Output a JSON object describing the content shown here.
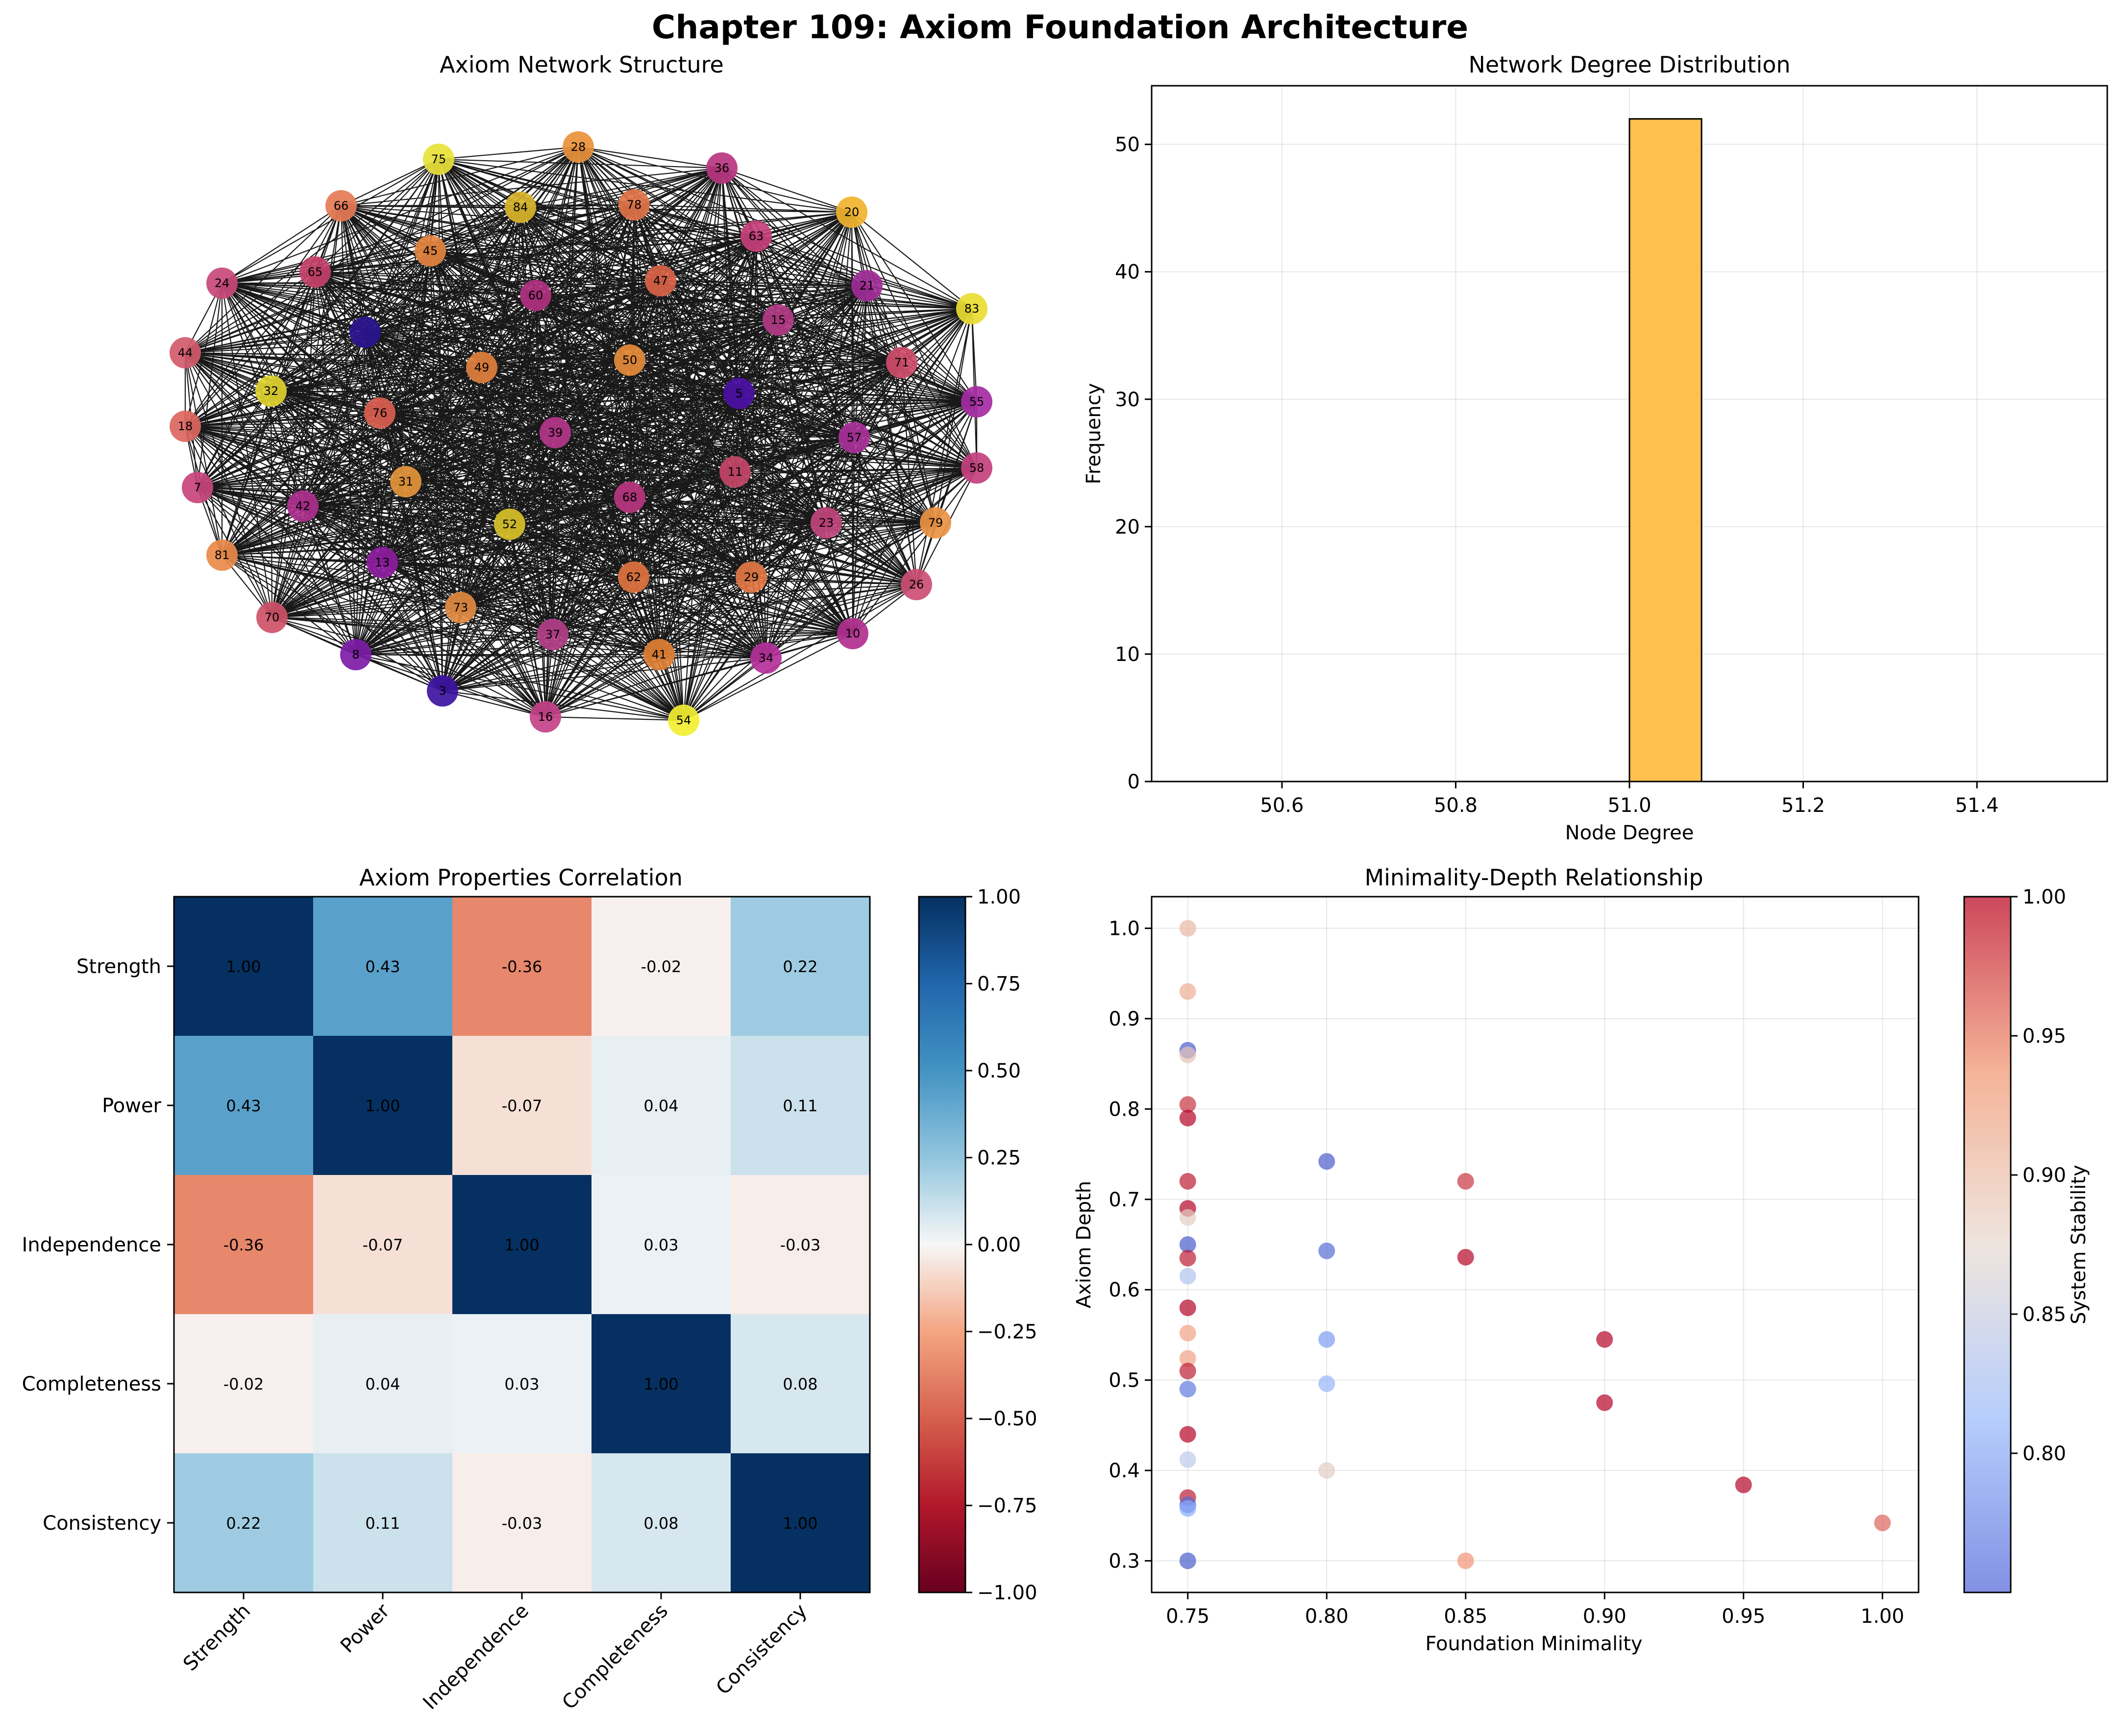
{
  "figure_title": "Chapter 109: Axiom Foundation Architecture",
  "chart_data": [
    {
      "type": "network",
      "title": "Axiom Network Structure",
      "node_count": 52,
      "complete_graph": true,
      "nodes": [
        {
          "label": "75",
          "color": "#e8e23a"
        },
        {
          "label": "28",
          "color": "#e8913a"
        },
        {
          "label": "36",
          "color": "#b9357f"
        },
        {
          "label": "20",
          "color": "#f0b32e"
        },
        {
          "label": "66",
          "color": "#e57a55"
        },
        {
          "label": "84",
          "color": "#d9b42a"
        },
        {
          "label": "78",
          "color": "#e07346"
        },
        {
          "label": "63",
          "color": "#c43f7a"
        },
        {
          "label": "45",
          "color": "#e3843f"
        },
        {
          "label": "24",
          "color": "#c8487a"
        },
        {
          "label": "65",
          "color": "#c4406a"
        },
        {
          "label": "60",
          "color": "#b03080"
        },
        {
          "label": "47",
          "color": "#d96247"
        },
        {
          "label": "21",
          "color": "#a02b97"
        },
        {
          "label": "83",
          "color": "#e9dc31"
        },
        {
          "label": "15",
          "color": "#b33a85"
        },
        {
          "label": "",
          "color": "#2a138f"
        },
        {
          "label": "44",
          "color": "#d15a6b"
        },
        {
          "label": "49",
          "color": "#e07f3c"
        },
        {
          "label": "50",
          "color": "#e58b38"
        },
        {
          "label": "71",
          "color": "#cf4c6a"
        },
        {
          "label": "32",
          "color": "#e0d22e"
        },
        {
          "label": "5",
          "color": "#4a0fa3"
        },
        {
          "label": "55",
          "color": "#a52ba2"
        },
        {
          "label": "18",
          "color": "#dd6660"
        },
        {
          "label": "76",
          "color": "#d95e50"
        },
        {
          "label": "39",
          "color": "#b3358a"
        },
        {
          "label": "57",
          "color": "#a83099"
        },
        {
          "label": "7",
          "color": "#c8447c"
        },
        {
          "label": "31",
          "color": "#e3953a"
        },
        {
          "label": "11",
          "color": "#c44466"
        },
        {
          "label": "58",
          "color": "#c4407f"
        },
        {
          "label": "42",
          "color": "#ad2f8e"
        },
        {
          "label": "68",
          "color": "#b9357f"
        },
        {
          "label": "52",
          "color": "#d8c129"
        },
        {
          "label": "23",
          "color": "#c0447c"
        },
        {
          "label": "79",
          "color": "#ea9244"
        },
        {
          "label": "81",
          "color": "#ea8a4a"
        },
        {
          "label": "13",
          "color": "#8d1c9f"
        },
        {
          "label": "62",
          "color": "#de723f"
        },
        {
          "label": "29",
          "color": "#e27744"
        },
        {
          "label": "26",
          "color": "#cc4f74"
        },
        {
          "label": "70",
          "color": "#cf5168"
        },
        {
          "label": "73",
          "color": "#e18a40"
        },
        {
          "label": "37",
          "color": "#b33e89"
        },
        {
          "label": "10",
          "color": "#b12f8e"
        },
        {
          "label": "8",
          "color": "#7c1ca6"
        },
        {
          "label": "41",
          "color": "#e07f34"
        },
        {
          "label": "34",
          "color": "#b4309a"
        },
        {
          "label": "3",
          "color": "#3d12a1"
        },
        {
          "label": "16",
          "color": "#c44188"
        },
        {
          "label": "54",
          "color": "#f2ef32"
        }
      ]
    },
    {
      "type": "bar",
      "title": "Network Degree Distribution",
      "xlabel": "Node Degree",
      "ylabel": "Frequency",
      "bins": [
        {
          "x0": 51.0,
          "x1": 51.083,
          "count": 52
        }
      ],
      "xlim": [
        50.45,
        51.55
      ],
      "ylim": [
        0,
        54.6
      ],
      "xticks": [
        "50.6",
        "50.8",
        "51.0",
        "51.2",
        "51.4"
      ],
      "yticks": [
        "0",
        "10",
        "20",
        "30",
        "40",
        "50"
      ],
      "bar_color": "#ffc04d",
      "grid": true
    },
    {
      "type": "heatmap",
      "title": "Axiom Properties Correlation",
      "labels": [
        "Strength",
        "Power",
        "Independence",
        "Completeness",
        "Consistency"
      ],
      "matrix": [
        [
          1.0,
          0.43,
          -0.36,
          -0.02,
          0.22
        ],
        [
          0.43,
          1.0,
          -0.07,
          0.04,
          0.11
        ],
        [
          -0.36,
          -0.07,
          1.0,
          0.03,
          -0.03
        ],
        [
          -0.02,
          0.04,
          0.03,
          1.0,
          0.08
        ],
        [
          0.22,
          0.11,
          -0.03,
          0.08,
          1.0
        ]
      ],
      "cell_text": [
        [
          "1.00",
          "0.43",
          "-0.36",
          "-0.02",
          "0.22"
        ],
        [
          "0.43",
          "1.00",
          "-0.07",
          "0.04",
          "0.11"
        ],
        [
          "-0.36",
          "-0.07",
          "1.00",
          "0.03",
          "-0.03"
        ],
        [
          "-0.02",
          "0.04",
          "0.03",
          "1.00",
          "0.08"
        ],
        [
          "0.22",
          "0.11",
          "-0.03",
          "0.08",
          "1.00"
        ]
      ],
      "colormap": "RdBu",
      "vmin": -1,
      "vmax": 1,
      "colorbar_ticks": [
        "1.00",
        "0.75",
        "0.50",
        "0.25",
        "0.00",
        "−0.25",
        "−0.50",
        "−0.75",
        "−1.00"
      ]
    },
    {
      "type": "scatter",
      "title": "Minimality-Depth Relationship",
      "xlabel": "Foundation Minimality",
      "ylabel": "Axiom Depth",
      "colorbar_label": "System Stability",
      "xlim": [
        0.737,
        1.013
      ],
      "ylim": [
        0.265,
        1.035
      ],
      "xticks": [
        "0.75",
        "0.80",
        "0.85",
        "0.90",
        "0.95",
        "1.00"
      ],
      "yticks": [
        "0.3",
        "0.4",
        "0.5",
        "0.6",
        "0.7",
        "0.8",
        "0.9",
        "1.0"
      ],
      "colorbar_range": [
        0.75,
        1.0
      ],
      "colorbar_ticks": [
        "1.00",
        "0.95",
        "0.90",
        "0.85",
        "0.80"
      ],
      "grid": true,
      "points": [
        {
          "x": 0.75,
          "y": 1.0,
          "c": 0.91
        },
        {
          "x": 0.75,
          "y": 0.93,
          "c": 0.92
        },
        {
          "x": 0.75,
          "y": 0.865,
          "c": 0.76
        },
        {
          "x": 0.75,
          "y": 0.86,
          "c": 0.9
        },
        {
          "x": 0.75,
          "y": 0.805,
          "c": 0.98
        },
        {
          "x": 0.75,
          "y": 0.79,
          "c": 1.0
        },
        {
          "x": 0.75,
          "y": 0.72,
          "c": 0.99
        },
        {
          "x": 0.75,
          "y": 0.69,
          "c": 1.0
        },
        {
          "x": 0.75,
          "y": 0.68,
          "c": 0.89
        },
        {
          "x": 0.75,
          "y": 0.65,
          "c": 0.76
        },
        {
          "x": 0.75,
          "y": 0.635,
          "c": 0.99
        },
        {
          "x": 0.75,
          "y": 0.615,
          "c": 0.84
        },
        {
          "x": 0.75,
          "y": 0.58,
          "c": 1.0
        },
        {
          "x": 0.75,
          "y": 0.552,
          "c": 0.93
        },
        {
          "x": 0.75,
          "y": 0.524,
          "c": 0.93
        },
        {
          "x": 0.75,
          "y": 0.51,
          "c": 0.99
        },
        {
          "x": 0.75,
          "y": 0.49,
          "c": 0.78
        },
        {
          "x": 0.75,
          "y": 0.44,
          "c": 1.0
        },
        {
          "x": 0.75,
          "y": 0.412,
          "c": 0.85
        },
        {
          "x": 0.75,
          "y": 0.37,
          "c": 0.99
        },
        {
          "x": 0.75,
          "y": 0.362,
          "c": 0.77
        },
        {
          "x": 0.75,
          "y": 0.358,
          "c": 0.81
        },
        {
          "x": 0.75,
          "y": 0.3,
          "c": 0.76
        },
        {
          "x": 0.8,
          "y": 0.742,
          "c": 0.76
        },
        {
          "x": 0.8,
          "y": 0.643,
          "c": 0.77
        },
        {
          "x": 0.8,
          "y": 0.545,
          "c": 0.8
        },
        {
          "x": 0.8,
          "y": 0.496,
          "c": 0.82
        },
        {
          "x": 0.8,
          "y": 0.4,
          "c": 0.89
        },
        {
          "x": 0.85,
          "y": 0.72,
          "c": 0.98
        },
        {
          "x": 0.85,
          "y": 0.636,
          "c": 1.0
        },
        {
          "x": 0.85,
          "y": 0.3,
          "c": 0.94
        },
        {
          "x": 0.9,
          "y": 0.545,
          "c": 1.0
        },
        {
          "x": 0.9,
          "y": 0.475,
          "c": 1.0
        },
        {
          "x": 0.95,
          "y": 0.384,
          "c": 1.0
        },
        {
          "x": 1.0,
          "y": 0.342,
          "c": 0.96
        }
      ]
    }
  ]
}
